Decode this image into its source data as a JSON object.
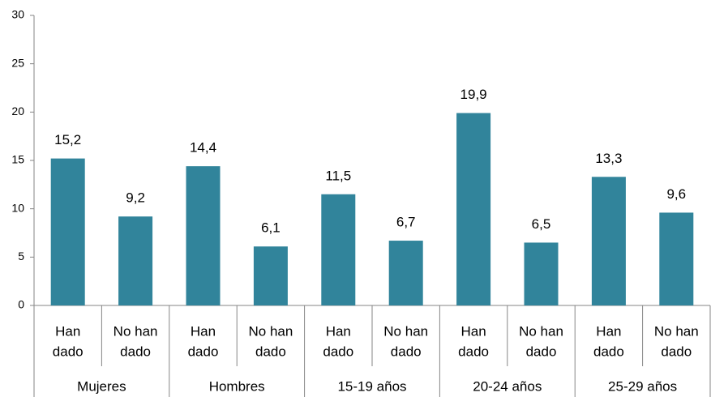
{
  "chart_data": {
    "type": "bar",
    "categories": [
      [
        "Han",
        "dado"
      ],
      [
        "No han",
        "dado"
      ],
      [
        "Han",
        "dado"
      ],
      [
        "No han",
        "dado"
      ],
      [
        "Han",
        "dado"
      ],
      [
        "No han",
        "dado"
      ],
      [
        "Han",
        "dado"
      ],
      [
        "No han",
        "dado"
      ],
      [
        "Han",
        "dado"
      ],
      [
        "No han",
        "dado"
      ]
    ],
    "groups": [
      "Mujeres",
      "Hombres",
      "15-19 años",
      "20-24 años",
      "25-29 años"
    ],
    "values": [
      15.2,
      9.2,
      14.4,
      6.1,
      11.5,
      6.7,
      19.9,
      6.5,
      13.3,
      9.6
    ],
    "value_labels": [
      "15,2",
      "9,2",
      "14,4",
      "6,1",
      "11,5",
      "6,7",
      "19,9",
      "6,5",
      "13,3",
      "9,6"
    ],
    "color": "#31849b",
    "ylim": [
      0,
      30
    ],
    "yticks": [
      0,
      5,
      10,
      15,
      20,
      25,
      30
    ],
    "grid": false
  }
}
